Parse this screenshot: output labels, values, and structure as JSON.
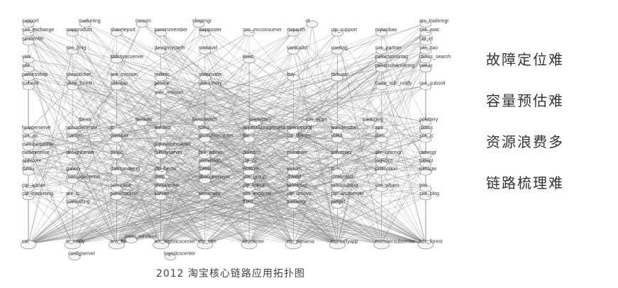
{
  "caption": "2012 淘宝核心链路应用拓扑图",
  "problems": [
    "故障定位难",
    "容量预估难",
    "资源浪费多",
    "链路梳理难"
  ],
  "colors": {
    "edge": "#8a8a8a",
    "node_fill": "#f4f4f4",
    "node_stroke": "#8c8c8c",
    "label": "#333333",
    "caption": "#444444",
    "side_text": "#333333"
  },
  "graph": {
    "top_rows": [
      [
        "support",
        "marketing",
        "mroom",
        "shopmgr",
        "",
        "et",
        "",
        "arc_trademgr"
      ],
      [
        "sns_exchange",
        "wapproduct",
        "shareteport",
        "pamirsmember",
        "wapposter",
        "sns_mcconsumer",
        "rtopauth",
        "ctp_support",
        "mytaobao",
        "sns_wwc"
      ],
      [
        "spucenter",
        "",
        "",
        "",
        "",
        "",
        "",
        "",
        "",
        "ctp_et"
      ],
      [
        "",
        "sns_fmig",
        "",
        "designsystem",
        "mstravel",
        "",
        "varticalist",
        "usertag",
        "sns_partner",
        "sns_tiao"
      ],
      [
        "visit",
        "",
        "tddssyncserver",
        "",
        "",
        "keno",
        "",
        "",
        "pamirssmartag",
        "rbcms_search"
      ],
      [
        "wfo",
        "",
        "",
        "",
        "",
        "",
        "",
        "",
        "pamirsshareitemg",
        "wwuic"
      ],
      [
        "pamirsshop",
        "shopsticket",
        "sns_mission",
        "mclinic",
        "shoprivate",
        "",
        "buy",
        "tbmusic",
        "",
        ""
      ],
      [
        "tccheck",
        "shop_forest",
        "sitemap",
        "poolce",
        "userlottery",
        "",
        "",
        "",
        "trade_sub_notify",
        "sns_subsoil"
      ],
      [
        "",
        "",
        "",
        "snst_mission",
        "",
        "",
        "",
        "",
        "",
        ""
      ]
    ],
    "middle_rows": [
      [
        "",
        "tbcrm",
        "favorite",
        "favorswitch",
        "wapiottery",
        "sns_apps",
        "tradeblog",
        "pclottery"
      ],
      [
        "hjupperserve",
        "upsuidecenter",
        "tc",
        "mertest",
        "tsmg",
        "appmallanagement",
        "upertoporal",
        "wanderstbs",
        "apc",
        "rbcms"
      ],
      [
        "sns_ac",
        "marilyn",
        "member",
        "",
        "tpurrofmacenter",
        "tbc",
        "ctp_tbanter",
        "volkit",
        "item",
        "sns_tc"
      ],
      [
        "memberprofile",
        "",
        "",
        "toposhisercenter",
        "",
        "",
        "",
        "",
        "",
        ""
      ],
      [
        "mcommerce",
        "designcenter",
        "elogic",
        "fulltinyserver",
        "bcx_admin",
        "dalisaro",
        "mscenter",
        "tctlcentez",
        "arc_ratemgr",
        "ratemgr"
      ],
      [
        "appstore",
        "",
        "",
        "",
        "alichesion",
        "ctp_pc",
        "",
        "",
        "logistics",
        "topapi"
      ],
      [
        "tbmiu",
        "galaxy",
        "distmanaging",
        "ctp_hecto",
        "forest",
        "ecstore",
        "topsim",
        "tc",
        "promotion",
        "mmsgw"
      ],
      [
        "",
        "massagecenter",
        "",
        "mslp",
        "dbaccesslayer",
        "sns_group",
        "duwall",
        "rotoncastl",
        "",
        ""
      ],
      [
        "ctp_admin",
        "",
        "servicene",
        "shopcenter",
        "",
        "ctp_editor",
        "taomolap",
        "mccloudring",
        "sns_wbam",
        "tms"
      ],
      [
        "ctp_marketing",
        "arc_tc",
        "pamirsadmin",
        "karvan",
        "terminator",
        "sns_exporter",
        "ctp_renova",
        "ctp_archserver",
        "",
        "sns_blog"
      ],
      [
        "",
        "biwrealting",
        "",
        "",
        "",
        "fronz",
        "trademgr",
        "radget",
        "",
        ""
      ]
    ],
    "bottom_hubs": [
      "cat",
      "tc_notify",
      "sns_fm",
      "arc_logisticscenter",
      "ctp_crm",
      "keycenter",
      "ctp_panama",
      "topnotifyapp",
      "membersubcenter",
      "b2c_forest"
    ],
    "bottom_sub": [
      "configserver",
      "logisticscenter",
      "mem_wireless"
    ]
  }
}
